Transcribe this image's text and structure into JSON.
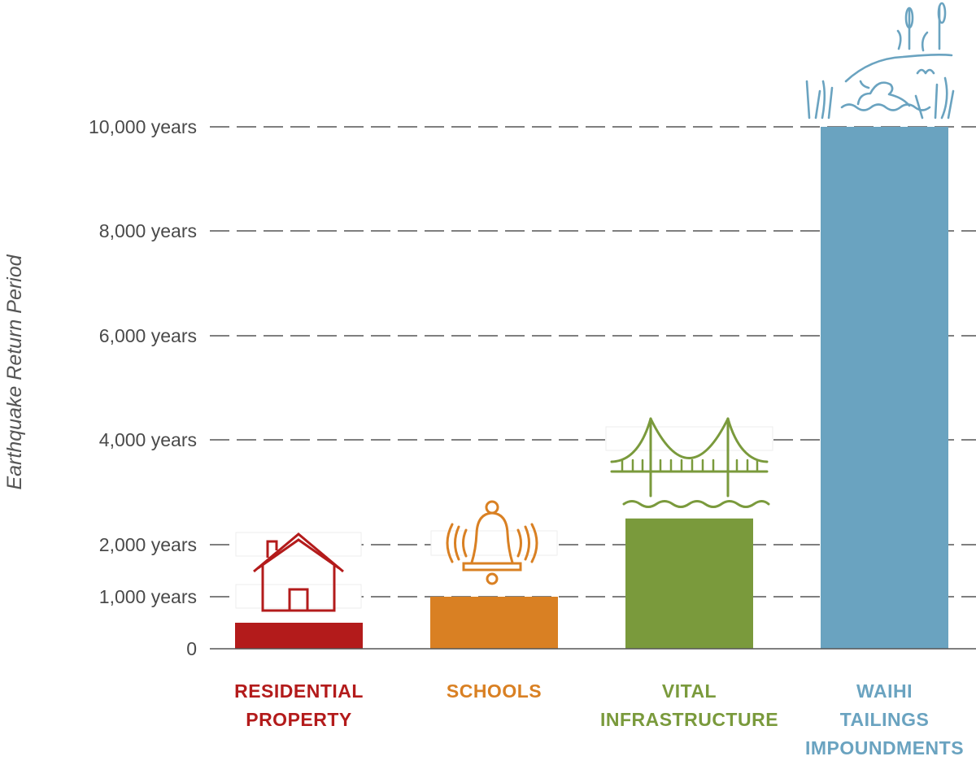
{
  "chart_data": {
    "type": "bar",
    "ylabel": "Earthquake Return Period",
    "xlabel": "",
    "ylim": [
      0,
      10000
    ],
    "y_scale": "piecewise",
    "y_ticks": [
      {
        "value": 0,
        "label": "0"
      },
      {
        "value": 1000,
        "label": "1,000 years"
      },
      {
        "value": 2000,
        "label": "2,000 years"
      },
      {
        "value": 4000,
        "label": "4,000 years"
      },
      {
        "value": 6000,
        "label": "6,000 years"
      },
      {
        "value": 8000,
        "label": "8,000 years"
      },
      {
        "value": 10000,
        "label": "10,000 years"
      }
    ],
    "grid": "dashed horizontal",
    "categories": [
      [
        "RESIDENTIAL",
        "PROPERTY"
      ],
      [
        "SCHOOLS"
      ],
      [
        "VITAL",
        "INFRASTRUCTURE"
      ],
      [
        "WAIHI",
        "TAILINGS",
        "IMPOUNDMENTS"
      ]
    ],
    "values": [
      500,
      1000,
      2500,
      10000
    ],
    "colors": [
      "#b31b1b",
      "#d98023",
      "#7a9a3c",
      "#6aa3c0"
    ],
    "icons": [
      "house-icon",
      "bell-icon",
      "bridge-icon",
      "wetland-duck-icon"
    ]
  }
}
